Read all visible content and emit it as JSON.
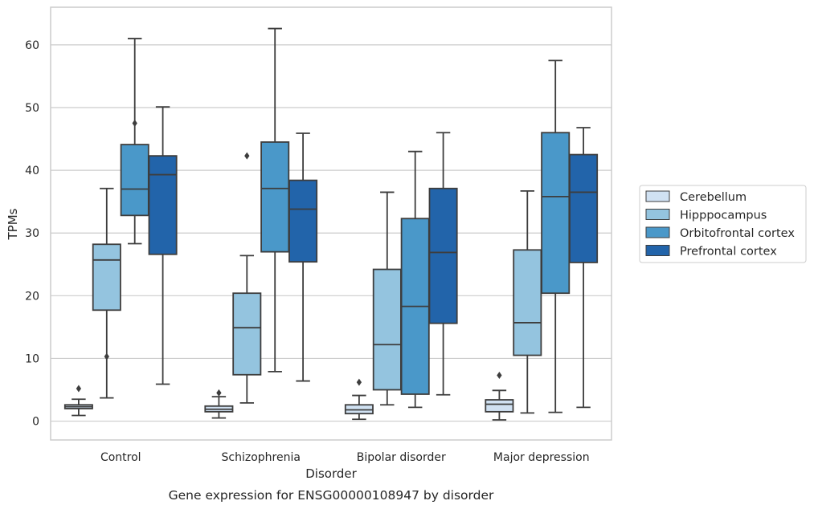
{
  "chart_data": {
    "type": "box",
    "xlabel": "Disorder",
    "ylabel": "TPMs",
    "caption": "Gene expression for ENSG00000108947 by disorder",
    "categories": [
      "Control",
      "Schizophrenia",
      "Bipolar disorder",
      "Major depression"
    ],
    "ylim": [
      -3,
      66
    ],
    "yticks": [
      0,
      10,
      20,
      30,
      40,
      50,
      60
    ],
    "grid": "horizontal",
    "legend_position": "right",
    "series": [
      {
        "name": "Cerebellum",
        "color": "#d0e1f2",
        "boxes": [
          {
            "whisker_low": 0.9,
            "q1": 2.0,
            "median": 2.3,
            "q3": 2.6,
            "whisker_high": 3.5,
            "outliers": [
              5.2
            ]
          },
          {
            "whisker_low": 0.5,
            "q1": 1.5,
            "median": 1.9,
            "q3": 2.4,
            "whisker_high": 3.9,
            "outliers": [
              4.5
            ]
          },
          {
            "whisker_low": 0.3,
            "q1": 1.2,
            "median": 1.8,
            "q3": 2.6,
            "whisker_high": 4.1,
            "outliers": [
              6.2
            ]
          },
          {
            "whisker_low": 0.2,
            "q1": 1.5,
            "median": 2.7,
            "q3": 3.4,
            "whisker_high": 4.9,
            "outliers": [
              7.3
            ]
          }
        ]
      },
      {
        "name": "Hipppocampus",
        "color": "#94c4df",
        "boxes": [
          {
            "whisker_low": 3.7,
            "q1": 17.7,
            "median": 25.7,
            "q3": 28.2,
            "whisker_high": 37.1,
            "outliers": [
              10.3
            ]
          },
          {
            "whisker_low": 2.9,
            "q1": 7.4,
            "median": 14.9,
            "q3": 20.4,
            "whisker_high": 26.4,
            "outliers": [
              42.3
            ]
          },
          {
            "whisker_low": 2.6,
            "q1": 5.0,
            "median": 12.2,
            "q3": 24.2,
            "whisker_high": 36.5,
            "outliers": []
          },
          {
            "whisker_low": 1.3,
            "q1": 10.5,
            "median": 15.7,
            "q3": 27.3,
            "whisker_high": 36.7,
            "outliers": []
          }
        ]
      },
      {
        "name": "Orbitofrontal cortex",
        "color": "#4a98c9",
        "boxes": [
          {
            "whisker_low": 28.3,
            "q1": 32.8,
            "median": 37.0,
            "q3": 44.1,
            "whisker_high": 61.0,
            "outliers": [
              47.5
            ]
          },
          {
            "whisker_low": 7.9,
            "q1": 27.0,
            "median": 37.1,
            "q3": 44.5,
            "whisker_high": 62.6,
            "outliers": []
          },
          {
            "whisker_low": 2.2,
            "q1": 4.3,
            "median": 18.3,
            "q3": 32.3,
            "whisker_high": 43.0,
            "outliers": []
          },
          {
            "whisker_low": 1.4,
            "q1": 20.4,
            "median": 35.8,
            "q3": 46.0,
            "whisker_high": 57.5,
            "outliers": []
          }
        ]
      },
      {
        "name": "Prefrontal cortex",
        "color": "#2264aa",
        "boxes": [
          {
            "whisker_low": 5.9,
            "q1": 26.6,
            "median": 39.3,
            "q3": 42.3,
            "whisker_high": 50.1,
            "outliers": []
          },
          {
            "whisker_low": 6.4,
            "q1": 25.4,
            "median": 33.8,
            "q3": 38.4,
            "whisker_high": 45.9,
            "outliers": []
          },
          {
            "whisker_low": 4.2,
            "q1": 15.6,
            "median": 26.9,
            "q3": 37.1,
            "whisker_high": 46.0,
            "outliers": []
          },
          {
            "whisker_low": 2.2,
            "q1": 25.3,
            "median": 36.5,
            "q3": 42.5,
            "whisker_high": 46.8,
            "outliers": []
          }
        ]
      }
    ]
  },
  "colors": {
    "line": "#3d3d3d",
    "grid": "#cccccc",
    "frame": "#cccccc"
  }
}
